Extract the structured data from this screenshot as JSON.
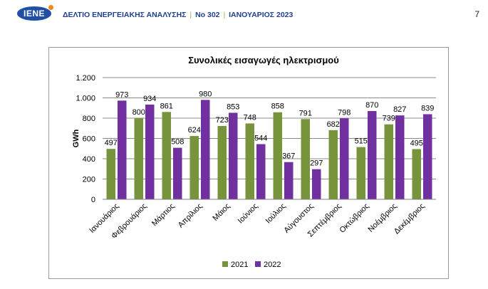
{
  "header": {
    "logo_text": "IENE",
    "bulletin": "ΔΕΛΤΙΟ ΕΝΕΡΓΕΙΑΚΗΣ ΑΝΑΛΥΣΗΣ",
    "issue": "Νο 302",
    "date": "ΙΑΝΟΥΑΡΙΟΣ 2023",
    "separator": "|",
    "page_number": "7"
  },
  "chart_data": {
    "type": "bar",
    "title": "Συνολικές εισαγωγές ηλεκτρισμού",
    "xlabel": "",
    "ylabel": "GWh",
    "ylim": [
      0,
      1200
    ],
    "yticks": [
      0,
      200,
      400,
      600,
      800,
      1000,
      1200
    ],
    "ytick_labels": [
      "0",
      "200",
      "400",
      "600",
      "800",
      "1.000",
      "1.200"
    ],
    "categories": [
      "Ιανουάριος",
      "Φεβρουάριος",
      "Μάρτιος",
      "Απρίλιος",
      "Μάιος",
      "Ιούνιος",
      "Ιούλιος",
      "Αύγουστος",
      "Σεπτέμβριος",
      "Οκτώβριος",
      "Νοέμβριος",
      "Δεκέμβριος"
    ],
    "series": [
      {
        "name": "2021",
        "color": "#77933c",
        "values": [
          497,
          800,
          861,
          624,
          723,
          748,
          858,
          791,
          682,
          515,
          739,
          495
        ]
      },
      {
        "name": "2022",
        "color": "#7030a0",
        "values": [
          973,
          934,
          508,
          980,
          853,
          544,
          367,
          297,
          798,
          870,
          827,
          839
        ]
      }
    ],
    "grid": true,
    "legend_position": "bottom"
  }
}
